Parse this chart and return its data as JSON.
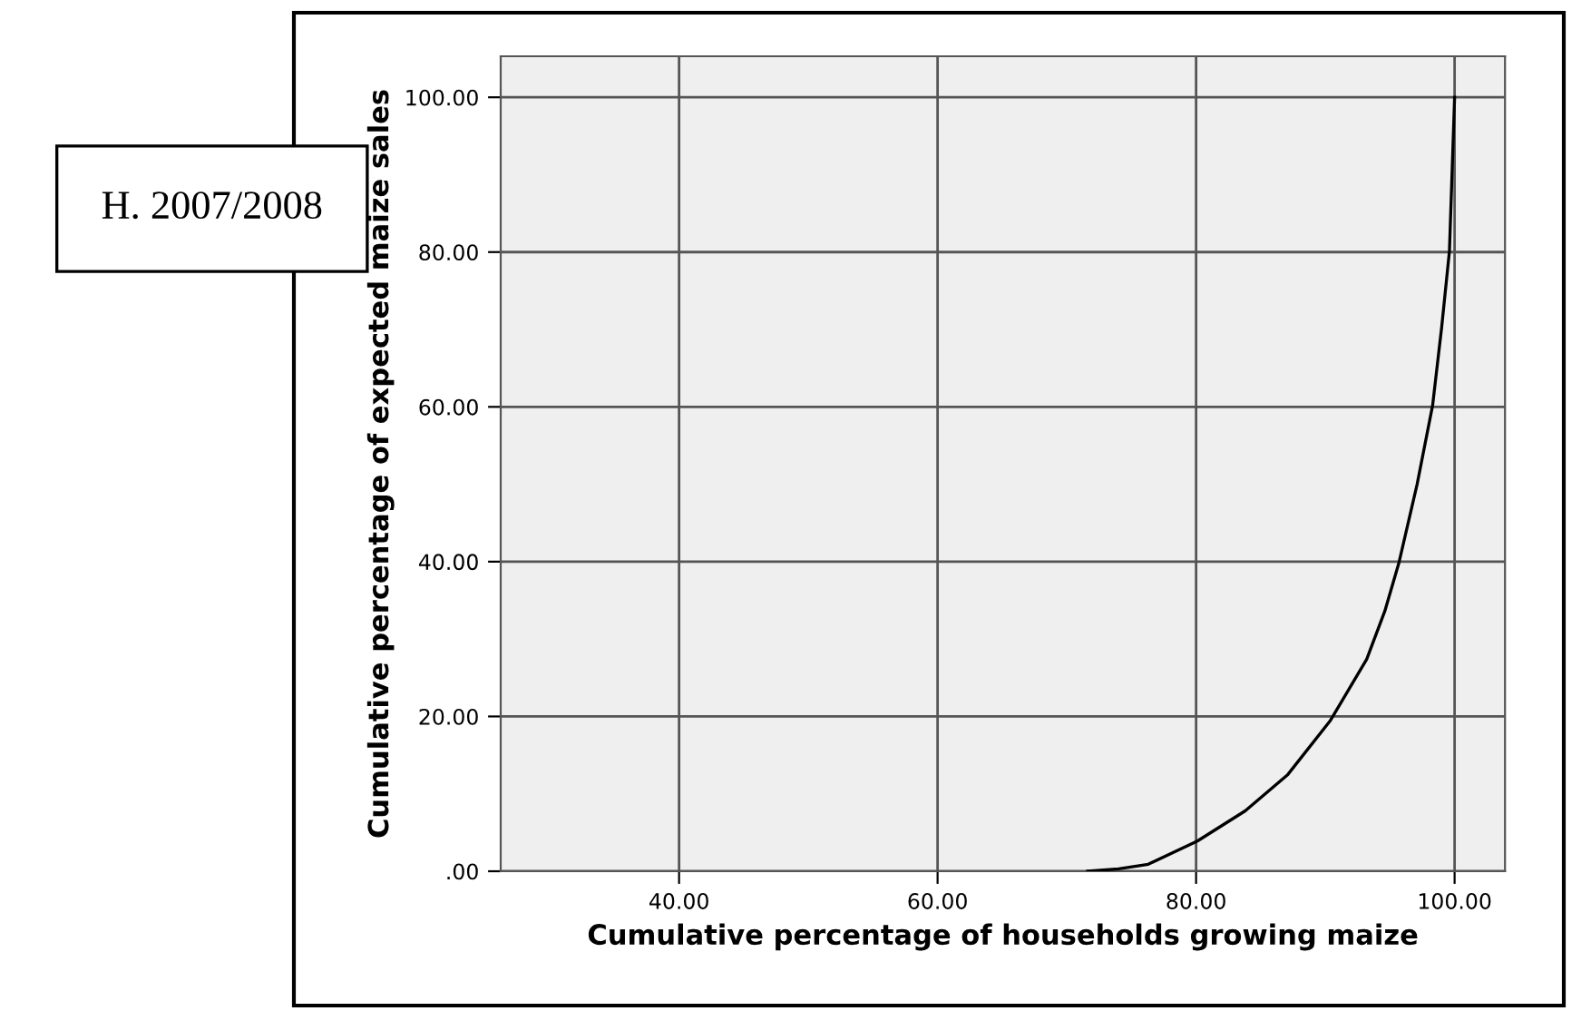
{
  "chart_data": {
    "type": "line",
    "xlabel": "Cumulative percentage of households growing maize",
    "ylabel": "Cumulative percentage of expected maize sales",
    "annotations": [
      "H. 2007/2008"
    ],
    "series": [
      {
        "color": "#000000",
        "x": [
          71.6,
          74.0,
          76.3,
          80.1,
          83.8,
          87.1,
          90.4,
          93.2,
          94.6,
          95.7,
          97.1,
          98.3,
          99.0,
          99.6,
          100.0
        ],
        "values": [
          0.0,
          0.3,
          0.9,
          3.9,
          7.8,
          12.5,
          19.5,
          27.4,
          33.6,
          39.9,
          50.0,
          60.2,
          70.3,
          80.1,
          100.0
        ]
      }
    ],
    "xlim": [
      26.2,
      103.9
    ],
    "ylim": [
      0,
      105.3
    ],
    "xticks": [
      {
        "value": 40,
        "label": "40.00"
      },
      {
        "value": 60,
        "label": "60.00"
      },
      {
        "value": 80,
        "label": "80.00"
      },
      {
        "value": 100,
        "label": "100.00"
      }
    ],
    "yticks": [
      {
        "value": 0,
        "label": ".00"
      },
      {
        "value": 20,
        "label": "20.00"
      },
      {
        "value": 40,
        "label": "40.00"
      },
      {
        "value": 60,
        "label": "60.00"
      },
      {
        "value": 80,
        "label": "80.00"
      },
      {
        "value": 100,
        "label": "100.00"
      }
    ],
    "grid": true,
    "marker": "none",
    "line_style": "solid"
  }
}
